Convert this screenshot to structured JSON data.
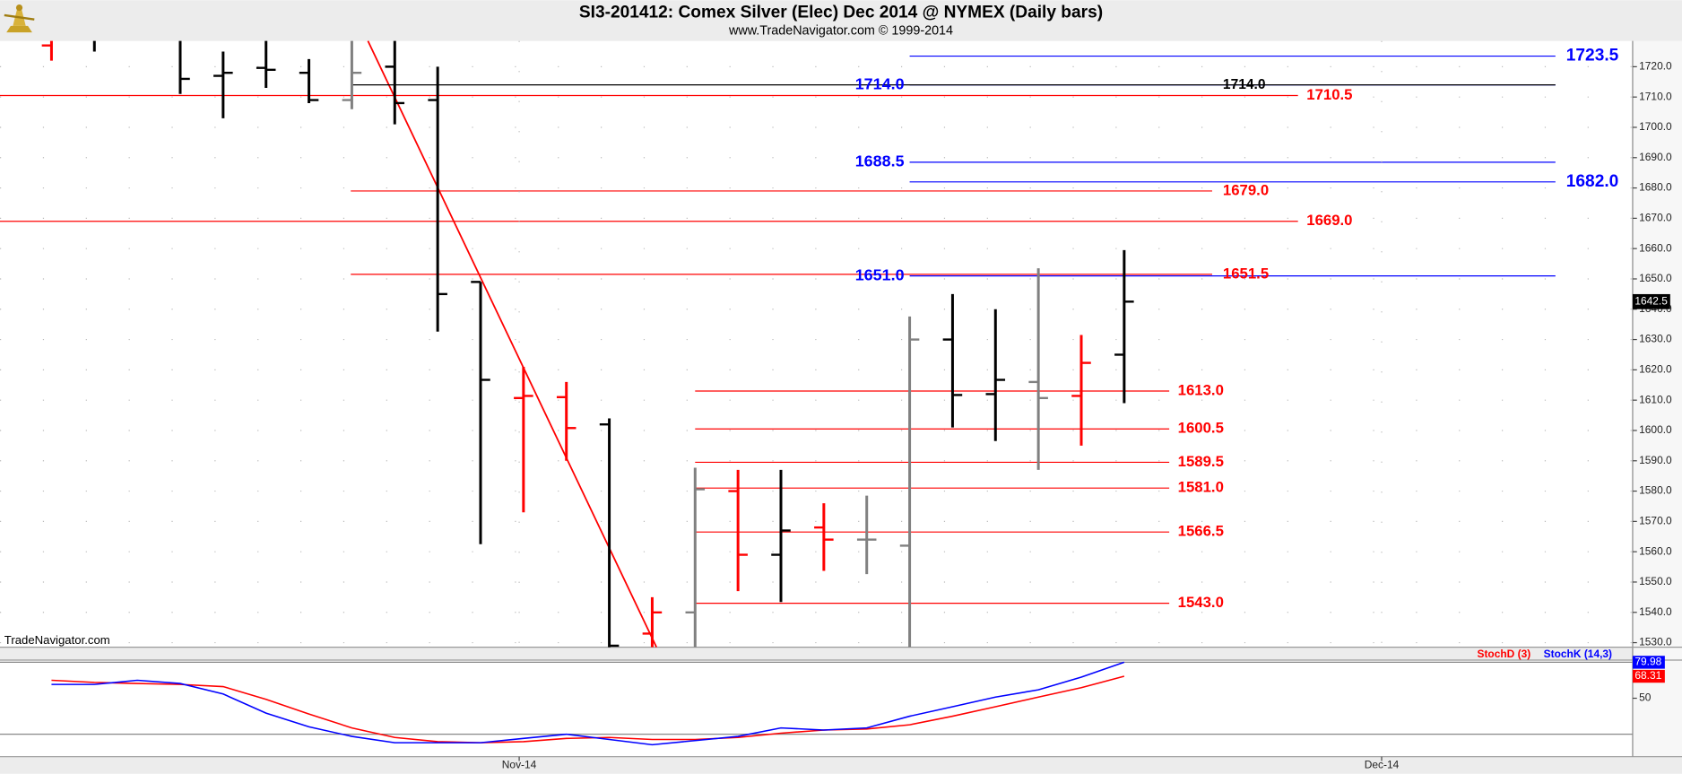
{
  "chart_data": [
    {
      "type": "ohlc",
      "title": "SI3-201412:  Comex Silver (Elec) Dec 2014 @ NYMEX  (Daily bars)",
      "subtitle": "www.TradeNavigator.com © 1999-2014",
      "watermark": "TradeNavigator.com",
      "open": [
        1727,
        1735,
        1740,
        1730,
        1717,
        1719.6,
        1718,
        1709,
        1720,
        1709,
        1649,
        1610.7,
        1611,
        1602,
        1533,
        1540,
        1580,
        1559,
        1568,
        1564,
        1562,
        1630,
        1612,
        1616,
        1611.4,
        1625
      ],
      "high": [
        1731,
        1740,
        1745,
        1735,
        1725,
        1732,
        1722.5,
        1730,
        1730,
        1720,
        1649,
        1621,
        1616,
        1604,
        1545,
        1587.7,
        1587,
        1587,
        1576,
        1578.5,
        1637.6,
        1645,
        1640,
        1653.5,
        1631.5,
        1659.5
      ],
      "low": [
        1722,
        1725,
        1732,
        1711,
        1703,
        1713,
        1708,
        1706,
        1701,
        1632.6,
        1562.5,
        1573,
        1590,
        1525,
        1520,
        1520,
        1547,
        1543.4,
        1553.7,
        1552.6,
        1520,
        1601,
        1596.5,
        1587,
        1595,
        1609
      ],
      "close": [
        1731,
        1732,
        1735,
        1716,
        1718,
        1719,
        1709,
        1718,
        1708,
        1645,
        1616.7,
        1611.4,
        1600.8,
        1529,
        1540,
        1580.6,
        1559,
        1567,
        1564,
        1564,
        1630,
        1611.7,
        1616.7,
        1610.7,
        1622.3,
        1642.5
      ],
      "colors": [
        "#ff0000",
        "#000000",
        "#000000",
        "#000000",
        "#000000",
        "#000000",
        "#000000",
        "#808080",
        "#000000",
        "#000000",
        "#000000",
        "#ff0000",
        "#ff0000",
        "#000000",
        "#ff0000",
        "#808080",
        "#ff0000",
        "#000000",
        "#ff0000",
        "#808080",
        "#808080",
        "#000000",
        "#000000",
        "#808080",
        "#ff0000",
        "#000000"
      ],
      "xlim": [
        -1.2,
        36.85
      ],
      "ylim": [
        1528.5,
        1728.5
      ],
      "yticks": [
        {
          "value": 1530,
          "label": "1530.0"
        },
        {
          "value": 1540,
          "label": "1540.0"
        },
        {
          "value": 1550,
          "label": "1550.0"
        },
        {
          "value": 1560,
          "label": "1560.0"
        },
        {
          "value": 1570,
          "label": "1570.0"
        },
        {
          "value": 1580,
          "label": "1580.0"
        },
        {
          "value": 1590,
          "label": "1590.0"
        },
        {
          "value": 1600,
          "label": "1600.0"
        },
        {
          "value": 1610,
          "label": "1610.0"
        },
        {
          "value": 1620,
          "label": "1620.0"
        },
        {
          "value": 1630,
          "label": "1630.0"
        },
        {
          "value": 1640,
          "label": "1640.0"
        },
        {
          "value": 1650,
          "label": "1650.0"
        },
        {
          "value": 1660,
          "label": "1660.0"
        },
        {
          "value": 1670,
          "label": "1670.0"
        },
        {
          "value": 1680,
          "label": "1680.0"
        },
        {
          "value": 1690,
          "label": "1690.0"
        },
        {
          "value": 1700,
          "label": "1700.0"
        },
        {
          "value": 1710,
          "label": "1710.0"
        },
        {
          "value": 1720,
          "label": "1720.0"
        }
      ],
      "grid": true,
      "levels": [
        {
          "value": 1723.5,
          "color": "#0000ff"
        },
        {
          "value": 1714,
          "label": "1714.0",
          "color": "#0000ff"
        },
        {
          "value": 1714,
          "label": "1714.0",
          "color": "#000000"
        },
        {
          "value": 1710.5,
          "color": "#ff0000"
        },
        {
          "value": 1688.5,
          "color": "#0000ff"
        },
        {
          "value": 1682,
          "label": "1682.0",
          "color": "#0000ff"
        },
        {
          "value": 1679,
          "label": "1679.0",
          "color": "#ff0000"
        },
        {
          "value": 1669,
          "label": "1669.0",
          "color": "#ff0000"
        },
        {
          "value": 1651,
          "label": "1651.0",
          "color": "#0000ff"
        },
        {
          "value": 1651.5,
          "color": "#ff0000"
        },
        {
          "value": 1613,
          "label": "1613.0",
          "color": "#ff0000"
        },
        {
          "value": 1600.5,
          "color": "#ff0000"
        },
        {
          "value": 1589.5,
          "color": "#ff0000"
        },
        {
          "value": 1581,
          "label": "1581.0",
          "color": "#ff0000"
        },
        {
          "value": 1566.5,
          "color": "#ff0000"
        },
        {
          "value": 1543,
          "label": "1543.0",
          "color": "#ff0000"
        }
      ]
    },
    {
      "type": "line",
      "series": [
        {
          "name": "StochD (3)",
          "color": "#ff0000",
          "values": [
            65,
            63.2,
            62.3,
            61.5,
            59.7,
            49.1,
            36.8,
            25.3,
            17.3,
            13.8,
            12.9,
            13.8,
            16.5,
            17.3,
            15.6,
            15.6,
            17.3,
            20.9,
            23.5,
            24.4,
            27.9,
            35,
            42.9,
            50.9,
            58.8,
            68.31
          ]
        },
        {
          "name": "StochK (14,3)",
          "color": "#0000ff",
          "values": [
            61.5,
            61.5,
            65,
            62.3,
            53.5,
            37.6,
            26.2,
            18.2,
            12.9,
            12.9,
            12.9,
            16.5,
            20,
            15.6,
            11.2,
            14.7,
            18.2,
            25.3,
            23.5,
            25.3,
            35,
            42.9,
            50.9,
            57,
            67.6,
            79.98
          ]
        }
      ],
      "xlim": [
        -1.2,
        36.85
      ],
      "xticks": [
        {
          "value": 10.9,
          "label": "Nov-14"
        },
        {
          "value": 31,
          "label": "Dec-14"
        }
      ],
      "ylim": [
        1.3,
        81.8
      ],
      "yticks": [
        50
      ],
      "hlines": [
        20,
        80
      ]
    }
  ]
}
